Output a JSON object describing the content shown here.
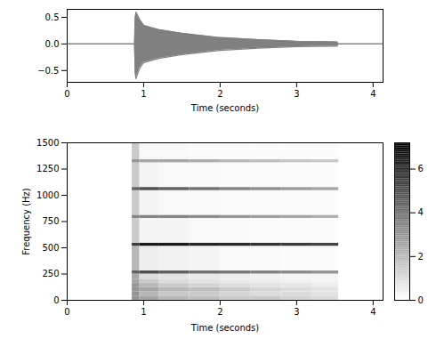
{
  "chart_data": [
    {
      "type": "area",
      "x_label": "Time (seconds)",
      "color": "gray",
      "x": [
        0,
        0.88,
        0.89,
        0.9,
        0.95,
        1.0,
        1.2,
        1.5,
        2.0,
        2.5,
        3.0,
        3.5,
        3.53,
        3.54,
        4.13
      ],
      "ymax": [
        0,
        0,
        0.5,
        0.6,
        0.45,
        0.35,
        0.27,
        0.2,
        0.12,
        0.08,
        0.05,
        0.04,
        0.04,
        0,
        0
      ],
      "ymin": [
        0,
        0,
        -0.55,
        -0.65,
        -0.45,
        -0.35,
        -0.27,
        -0.2,
        -0.12,
        -0.08,
        -0.05,
        -0.04,
        -0.04,
        0,
        0
      ],
      "xlim": [
        0,
        4.13
      ],
      "xticks": [
        0,
        1,
        2,
        3,
        4
      ],
      "ylim": [
        -0.72,
        0.65
      ],
      "yticks": [
        {
          "value": -0.5,
          "label": "−0.5"
        },
        {
          "value": 0,
          "label": "0.0"
        },
        {
          "value": 0.5,
          "label": "0.5"
        }
      ]
    },
    {
      "type": "heatmap",
      "x_label": "Time (seconds)",
      "y_label": "Frequency (Hz)",
      "time_bins": [
        0.85,
        0.95,
        1.2,
        1.6,
        2.0,
        2.4,
        2.8,
        3.2,
        3.55
      ],
      "freq_bins": [
        0,
        40,
        80,
        120,
        160,
        200,
        250,
        280,
        515,
        545,
        780,
        810,
        1045,
        1075,
        1310,
        1340,
        1500
      ],
      "cells": [
        [
          3,
          3,
          3,
          3,
          2.5,
          2.5,
          4.5,
          2,
          5.5,
          1.5,
          3.5,
          1.5,
          4.5,
          1.5,
          3,
          1.5
        ],
        [
          2.5,
          2,
          2.5,
          2,
          1.5,
          1,
          5,
          0.5,
          6.5,
          0.3,
          3.5,
          0.3,
          5,
          0.3,
          2.5,
          0.2
        ],
        [
          2,
          1.5,
          2,
          1.5,
          1,
          0.8,
          4.5,
          0.4,
          6.5,
          0.3,
          3.5,
          0.2,
          4.5,
          0.2,
          2.5,
          0.2
        ],
        [
          1.8,
          1.5,
          1.8,
          1.2,
          0.8,
          0.6,
          4,
          0.3,
          6.2,
          0.2,
          3.3,
          0.2,
          4,
          0.2,
          2.3,
          0.1
        ],
        [
          1.5,
          1.2,
          1.5,
          1,
          0.6,
          0.5,
          3.8,
          0.2,
          6,
          0.2,
          3,
          0.1,
          3.5,
          0.1,
          2,
          0.1
        ],
        [
          1.5,
          1,
          1.2,
          0.8,
          0.5,
          0.4,
          3.5,
          0.2,
          5.8,
          0.1,
          2.8,
          0.1,
          3.2,
          0.1,
          1.8,
          0.1
        ],
        [
          1.2,
          1,
          1,
          0.7,
          0.4,
          0.3,
          3.3,
          0.1,
          5.5,
          0.1,
          2.5,
          0.1,
          2.8,
          0.1,
          1.6,
          0.1
        ],
        [
          1,
          0.8,
          0.8,
          0.5,
          0.3,
          0.3,
          3,
          0.1,
          5.3,
          0.1,
          2.3,
          0.1,
          2.5,
          0.1,
          1.5,
          0.1
        ]
      ],
      "xlim": [
        0,
        4.13
      ],
      "xticks": [
        0,
        1,
        2,
        3,
        4
      ],
      "ylim": [
        0,
        1500
      ],
      "yticks": [
        0,
        250,
        500,
        750,
        1000,
        1250,
        1500
      ],
      "colorbar_range": [
        0,
        7.2
      ],
      "colorbar_ticks": [
        0,
        2,
        4,
        6
      ]
    }
  ]
}
